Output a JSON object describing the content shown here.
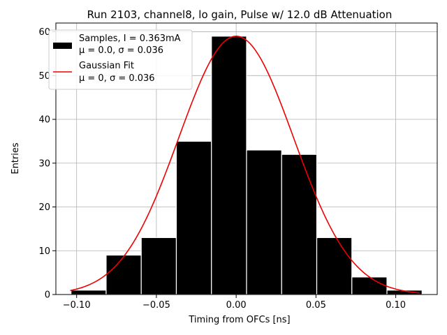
{
  "chart_data": {
    "type": "bar",
    "title": "Run 2103, channel8, lo gain, Pulse w/ 12.0 dB Attenuation",
    "xlabel": "Timing from OFCs [ns]",
    "ylabel": "Entries",
    "xlim": [
      -0.113,
      0.126
    ],
    "ylim": [
      0,
      62
    ],
    "xticks": [
      -0.1,
      -0.05,
      0.0,
      0.05,
      0.1
    ],
    "xtick_labels": [
      "−0.10",
      "−0.05",
      "0.00",
      "0.05",
      "0.10"
    ],
    "yticks": [
      0,
      10,
      20,
      30,
      40,
      50,
      60
    ],
    "ytick_labels": [
      "0",
      "10",
      "20",
      "30",
      "40",
      "50",
      "60"
    ],
    "grid": true,
    "legend_position": "top-left",
    "bin_edges": [
      -0.1035,
      -0.0815,
      -0.0595,
      -0.0375,
      -0.0155,
      0.0065,
      0.0285,
      0.0505,
      0.0725,
      0.0945,
      0.1165
    ],
    "values": [
      1,
      9,
      13,
      35,
      59,
      33,
      32,
      13,
      4,
      1
    ],
    "histogram_color": "#000000",
    "fit": {
      "mu": 0,
      "sigma": 0.036,
      "amplitude": 59,
      "x_range": [
        -0.104,
        0.115
      ],
      "color": "#ee0000"
    },
    "legend": [
      {
        "line1": "Samples, I = 0.363mA",
        "line2": "μ = 0.0, σ = 0.036"
      },
      {
        "line1": "Gaussian Fit",
        "line2": "μ = 0, σ = 0.036"
      }
    ]
  }
}
